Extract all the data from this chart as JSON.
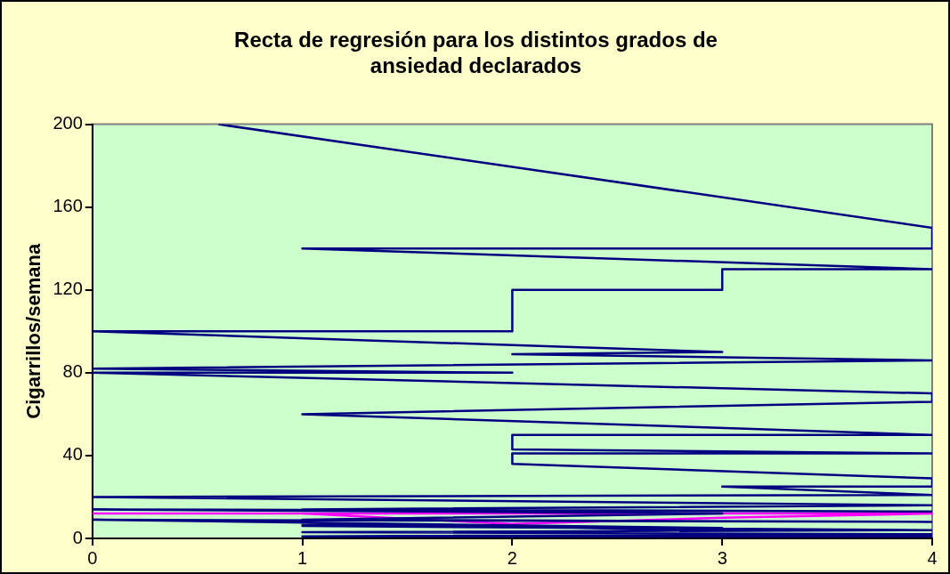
{
  "chart_data": {
    "type": "line",
    "title": [
      "Recta de regresión para los distintos grados de",
      "ansiedad declarados"
    ],
    "ylabel": "Cigarrillos/semana",
    "xlim": [
      0,
      4
    ],
    "xticks": [
      0,
      1,
      2,
      3,
      4
    ],
    "ylim": [
      0,
      200
    ],
    "yticks": [
      0,
      40,
      80,
      120,
      160,
      200
    ],
    "legend": false,
    "marker": "none",
    "line_style": "solid",
    "series": [
      {
        "color": "#000080",
        "x": [
          0.6,
          4,
          4,
          1,
          4,
          3,
          3,
          2,
          2,
          0,
          3,
          2,
          4,
          0,
          2,
          0,
          4,
          4,
          1,
          4,
          2,
          2,
          4,
          2,
          2,
          4,
          4,
          3,
          4,
          0,
          4,
          1,
          4,
          0,
          3,
          1,
          4,
          0,
          3,
          1,
          4,
          1,
          4,
          1,
          4,
          2,
          3,
          1,
          2
        ],
        "values": [
          200,
          150,
          140,
          140,
          130,
          130,
          120,
          120,
          100,
          100,
          90,
          89,
          86,
          82,
          80,
          80,
          70,
          66,
          60,
          50,
          50,
          43,
          41,
          41,
          36,
          29,
          25,
          25,
          21,
          20,
          16,
          14,
          13,
          14,
          12,
          9,
          8,
          9,
          5,
          6,
          4,
          3,
          2,
          1,
          1,
          3,
          4,
          7,
          6
        ]
      },
      {
        "color": "#ff00ff",
        "x": [
          0,
          4,
          1,
          2,
          3,
          4
        ],
        "values": [
          12,
          12,
          12,
          7,
          10,
          12
        ]
      }
    ]
  }
}
